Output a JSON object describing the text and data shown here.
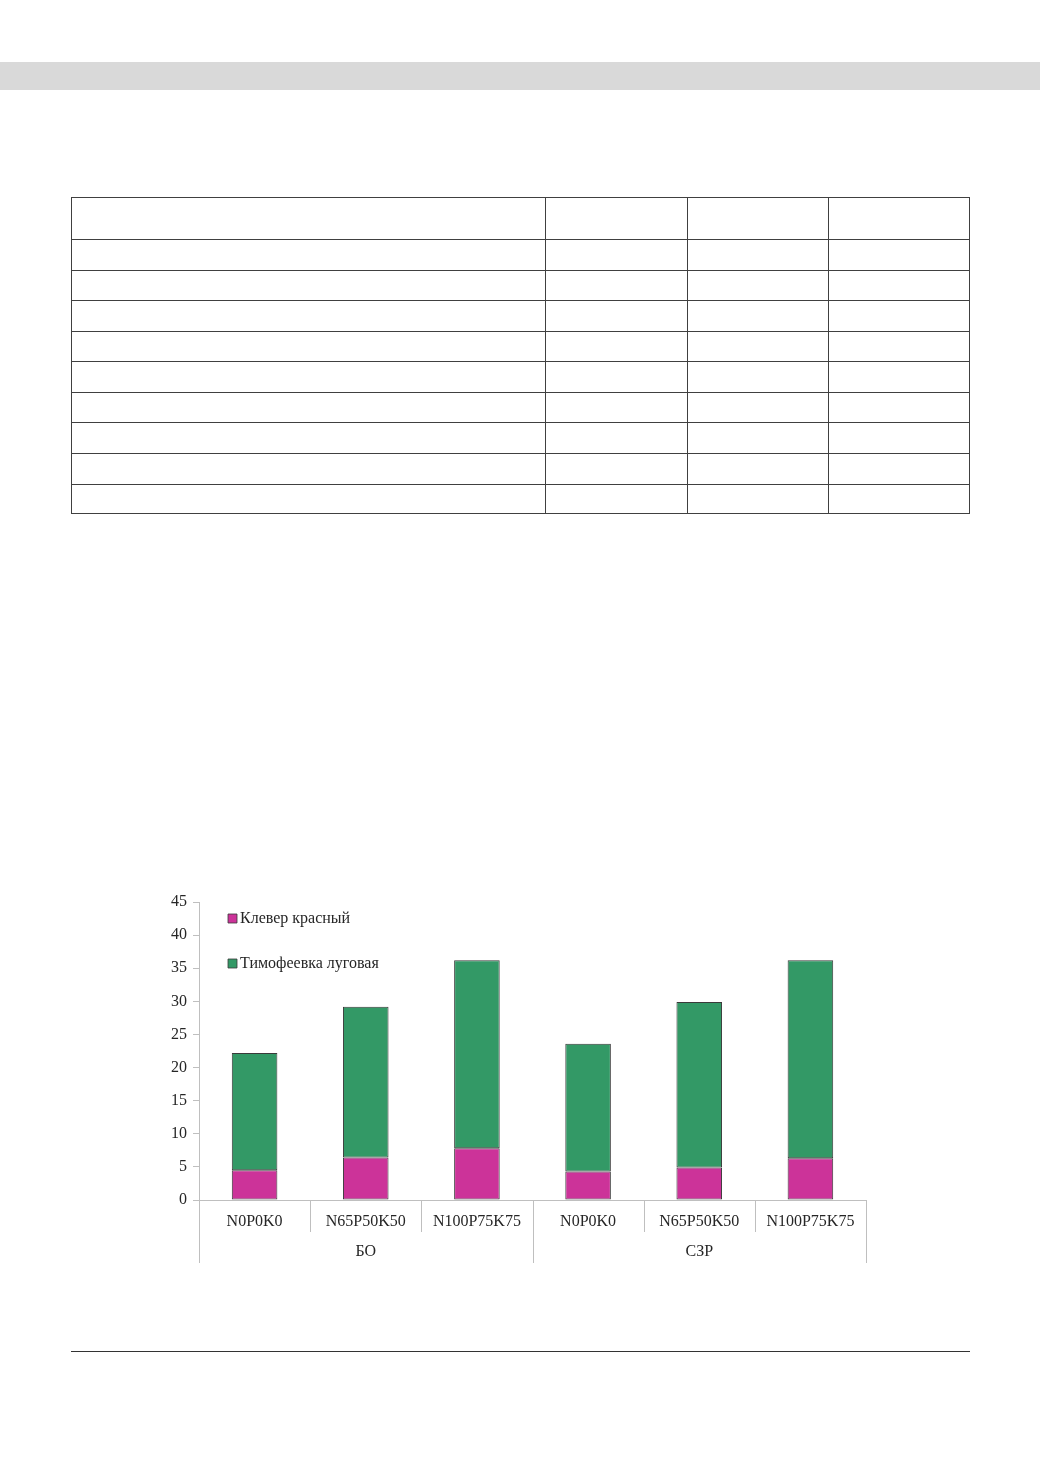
{
  "chart_data": {
    "type": "bar",
    "categories": [
      "N0P0K0",
      "N65P50K50",
      "N100P75K75",
      "N0P0K0",
      "N65P50K50",
      "N100P75K75"
    ],
    "series": [
      {
        "name": "Клевер красный",
        "color": "#cc3399",
        "values": [
          4.5,
          6.4,
          7.8,
          4.3,
          4.9,
          6.3
        ]
      },
      {
        "name": "Тимофеевка луговая",
        "color": "#339966",
        "values": [
          17.7,
          22.8,
          28.4,
          19.3,
          25.0,
          29.9
        ]
      }
    ],
    "stacked": true,
    "ylim": [
      0,
      45
    ],
    "yticks": [
      0,
      5,
      10,
      15,
      20,
      25,
      30,
      35,
      40,
      45
    ],
    "grid": false,
    "legend": "top left",
    "annotations": [
      "БО",
      "СЗР"
    ]
  }
}
